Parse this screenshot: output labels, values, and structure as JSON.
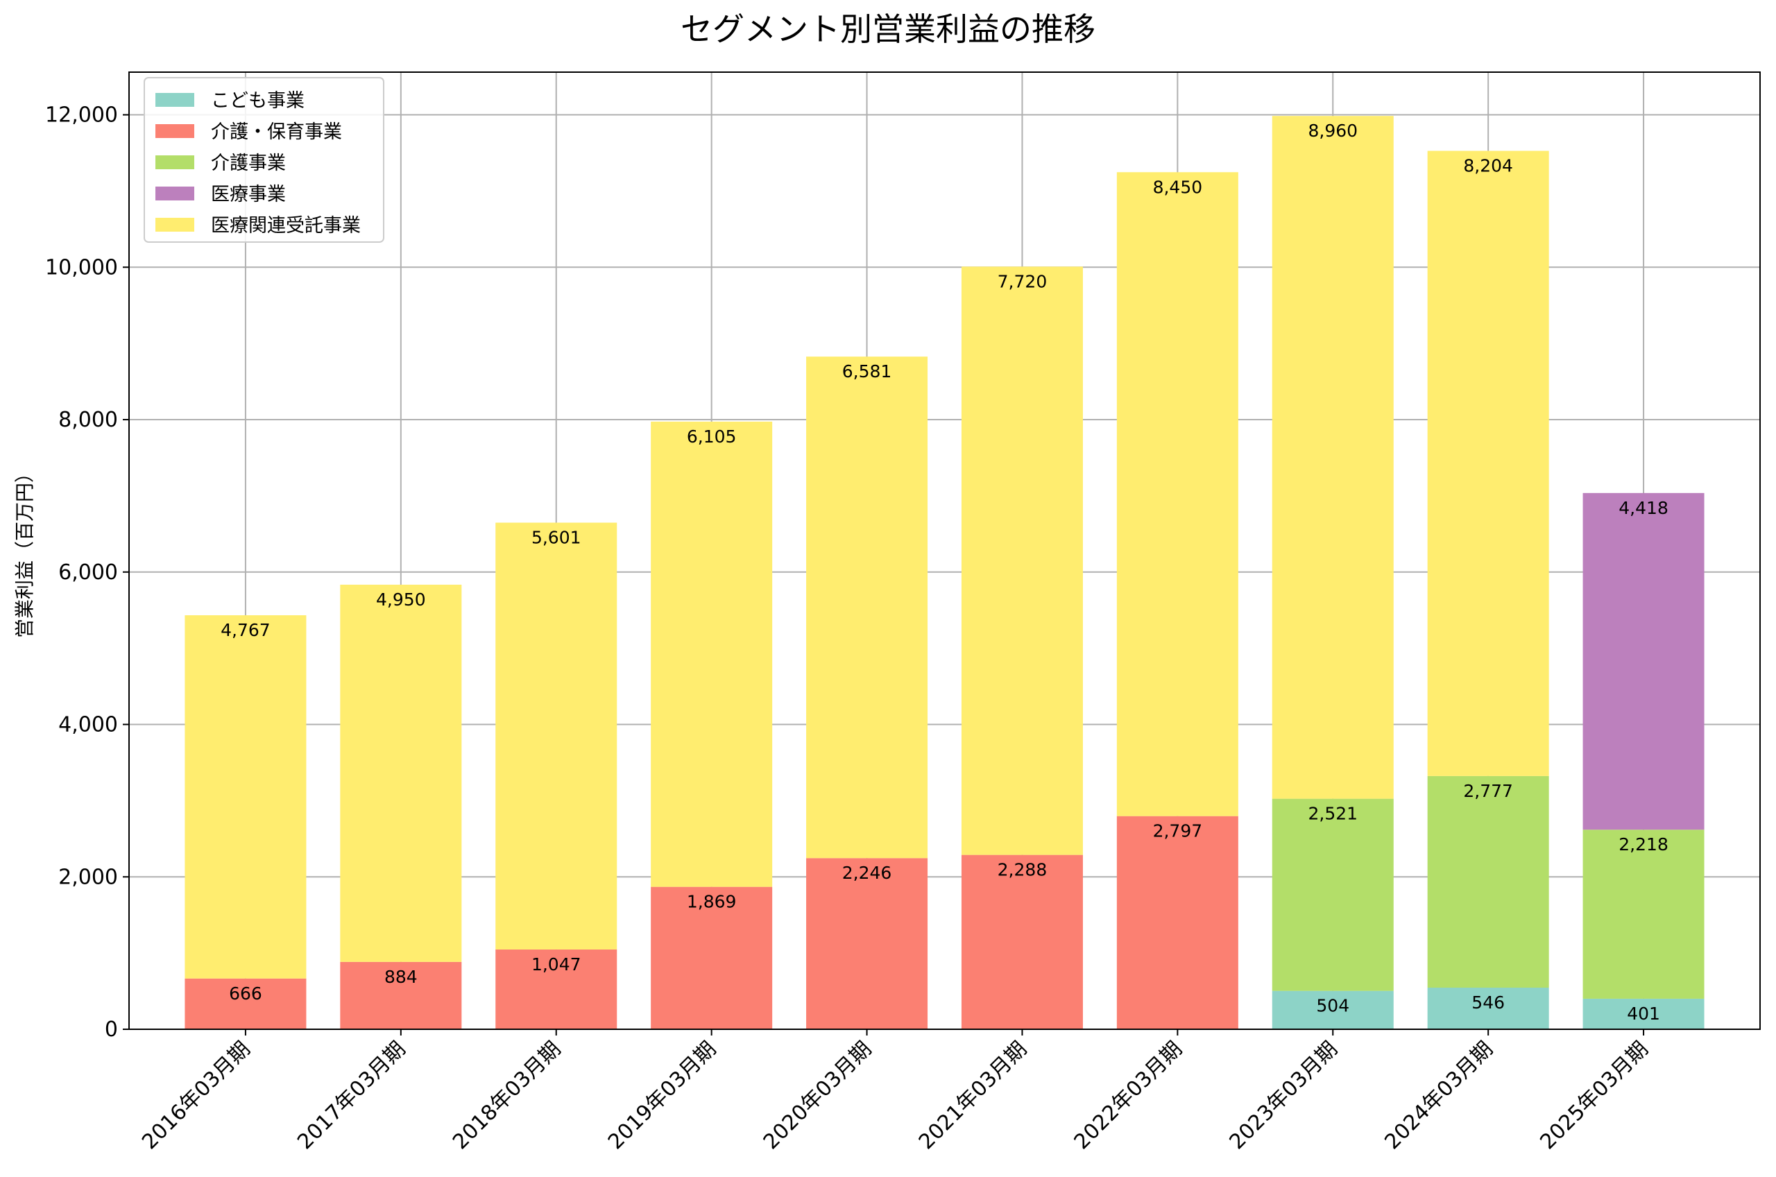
{
  "chart_data": {
    "type": "bar",
    "stacked": true,
    "title": "セグメント別営業利益の推移",
    "xlabel": "",
    "ylabel": "営業利益（百万円）",
    "ylim": [
      0,
      12560
    ],
    "yticks": [
      0,
      2000,
      4000,
      6000,
      8000,
      10000,
      12000
    ],
    "ytick_labels": [
      "0",
      "2,000",
      "4,000",
      "6,000",
      "8,000",
      "10,000",
      "12,000"
    ],
    "grid": true,
    "legend_position": "top-left",
    "categories": [
      "2016年03月期",
      "2017年03月期",
      "2018年03月期",
      "2019年03月期",
      "2020年03月期",
      "2021年03月期",
      "2022年03月期",
      "2023年03月期",
      "2024年03月期",
      "2025年03月期"
    ],
    "series": [
      {
        "name": "こども事業",
        "color": "#8dd3c7",
        "values": [
          null,
          null,
          null,
          null,
          null,
          null,
          null,
          504,
          546,
          401
        ]
      },
      {
        "name": "介護・保育事業",
        "color": "#fb8072",
        "values": [
          666,
          884,
          1047,
          1869,
          2246,
          2288,
          2797,
          null,
          null,
          null
        ]
      },
      {
        "name": "介護事業",
        "color": "#b3de69",
        "values": [
          null,
          null,
          null,
          null,
          null,
          null,
          null,
          2521,
          2777,
          2218
        ]
      },
      {
        "name": "医療事業",
        "color": "#bc80bd",
        "values": [
          null,
          null,
          null,
          null,
          null,
          null,
          null,
          null,
          null,
          4418
        ]
      },
      {
        "name": "医療関連受託事業",
        "color": "#ffed6f",
        "values": [
          4767,
          4950,
          5601,
          6105,
          6581,
          7720,
          8450,
          8960,
          8204,
          null
        ]
      }
    ]
  }
}
